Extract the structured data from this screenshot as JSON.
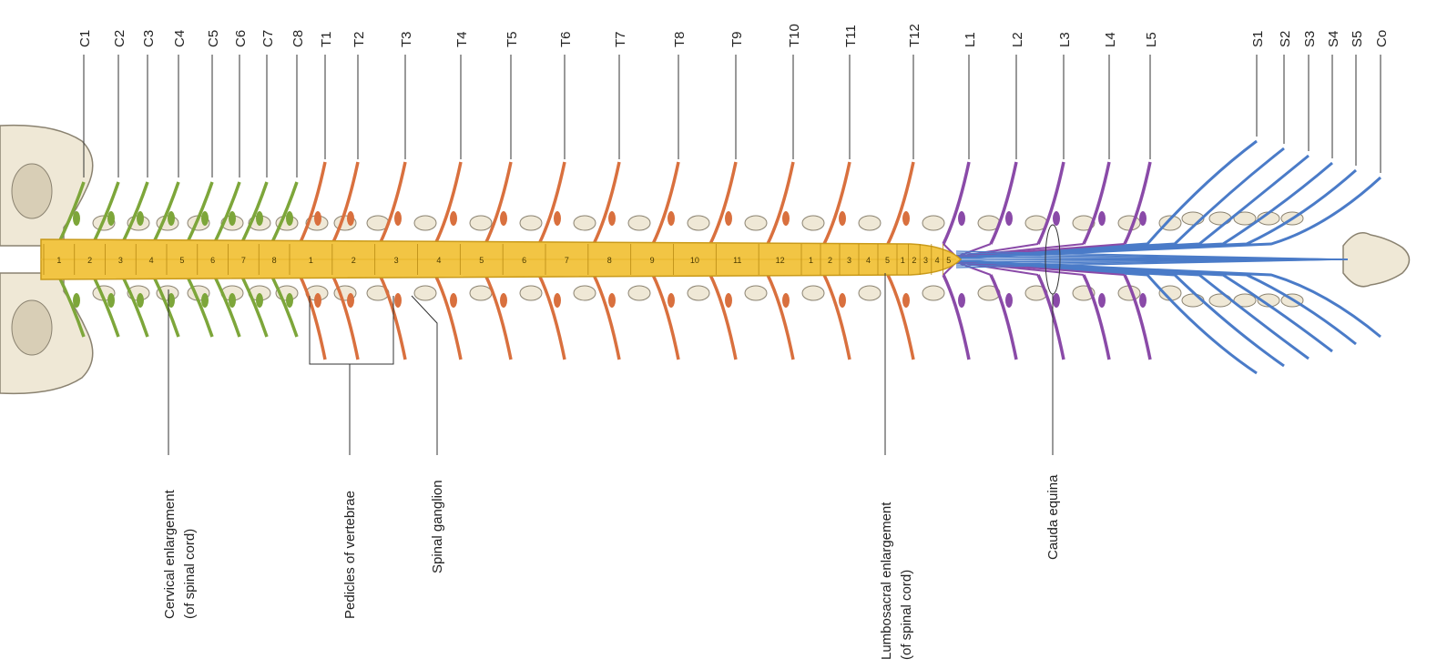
{
  "nerves": {
    "cervical": [
      "C1",
      "C2",
      "C3",
      "C4",
      "C5",
      "C6",
      "C7",
      "C8"
    ],
    "thoracic": [
      "T1",
      "T2",
      "T3",
      "T4",
      "T5",
      "T6",
      "T7",
      "T8",
      "T9",
      "T10",
      "T11",
      "T12"
    ],
    "lumbar": [
      "L1",
      "L2",
      "L3",
      "L4",
      "L5"
    ],
    "sacral": [
      "S1",
      "S2",
      "S3",
      "S4",
      "S5",
      "Co"
    ]
  },
  "cord_segments": {
    "cervical": [
      "1",
      "2",
      "3",
      "4",
      "5",
      "6",
      "7",
      "8"
    ],
    "thoracic": [
      "1",
      "2",
      "3",
      "4",
      "5",
      "6",
      "7",
      "8",
      "9",
      "10",
      "11",
      "12"
    ],
    "lumbar": [
      "1",
      "2",
      "3",
      "4",
      "5"
    ],
    "sacral": [
      "1",
      "2",
      "3",
      "4",
      "5"
    ]
  },
  "callouts": {
    "cervical_enlargement": [
      "Cervical enlargement",
      "(of spinal cord)"
    ],
    "pedicles": "Pedicles of vertebrae",
    "spinal_ganglion": "Spinal ganglion",
    "lumbosacral_enlargement": [
      "Lumbosacral enlargement",
      "(of spinal cord)"
    ],
    "cauda_equina": "Cauda equina"
  },
  "colors": {
    "cervical": "#7da63a",
    "thoracic": "#d9703e",
    "lumbar": "#8a4aa8",
    "sacral": "#4a7bc8",
    "cord": "#f2c544",
    "cord_edge": "#c99a1a",
    "bone": "#efe8d6",
    "bone_edge": "#8a8270"
  }
}
